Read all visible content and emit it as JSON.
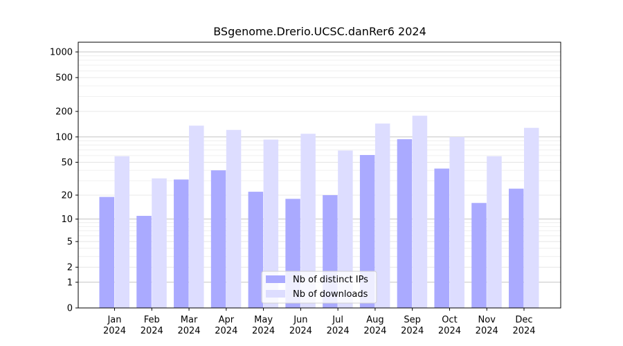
{
  "chart_data": {
    "type": "bar",
    "title": "BSgenome.Drerio.UCSC.danRer6 2024",
    "xlabel": "",
    "ylabel": "",
    "yscale": "symlog",
    "ylim": [
      0,
      1300
    ],
    "y_ticks": [
      0,
      1,
      2,
      5,
      10,
      20,
      50,
      100,
      200,
      500,
      1000
    ],
    "categories": [
      {
        "month": "Jan",
        "year": "2024"
      },
      {
        "month": "Feb",
        "year": "2024"
      },
      {
        "month": "Mar",
        "year": "2024"
      },
      {
        "month": "Apr",
        "year": "2024"
      },
      {
        "month": "May",
        "year": "2024"
      },
      {
        "month": "Jun",
        "year": "2024"
      },
      {
        "month": "Jul",
        "year": "2024"
      },
      {
        "month": "Aug",
        "year": "2024"
      },
      {
        "month": "Sep",
        "year": "2024"
      },
      {
        "month": "Oct",
        "year": "2024"
      },
      {
        "month": "Nov",
        "year": "2024"
      },
      {
        "month": "Dec",
        "year": "2024"
      }
    ],
    "series": [
      {
        "name": "Nb of distinct IPs",
        "color": "#aaaaff",
        "values": [
          19,
          11,
          31,
          40,
          22,
          18,
          20,
          61,
          94,
          42,
          16,
          24
        ]
      },
      {
        "name": "Nb of downloads",
        "color": "#ddddff",
        "values": [
          59,
          32,
          136,
          121,
          93,
          109,
          69,
          144,
          178,
          100,
          59,
          128
        ]
      }
    ],
    "grid": true,
    "legend_position": "bottom-center"
  }
}
